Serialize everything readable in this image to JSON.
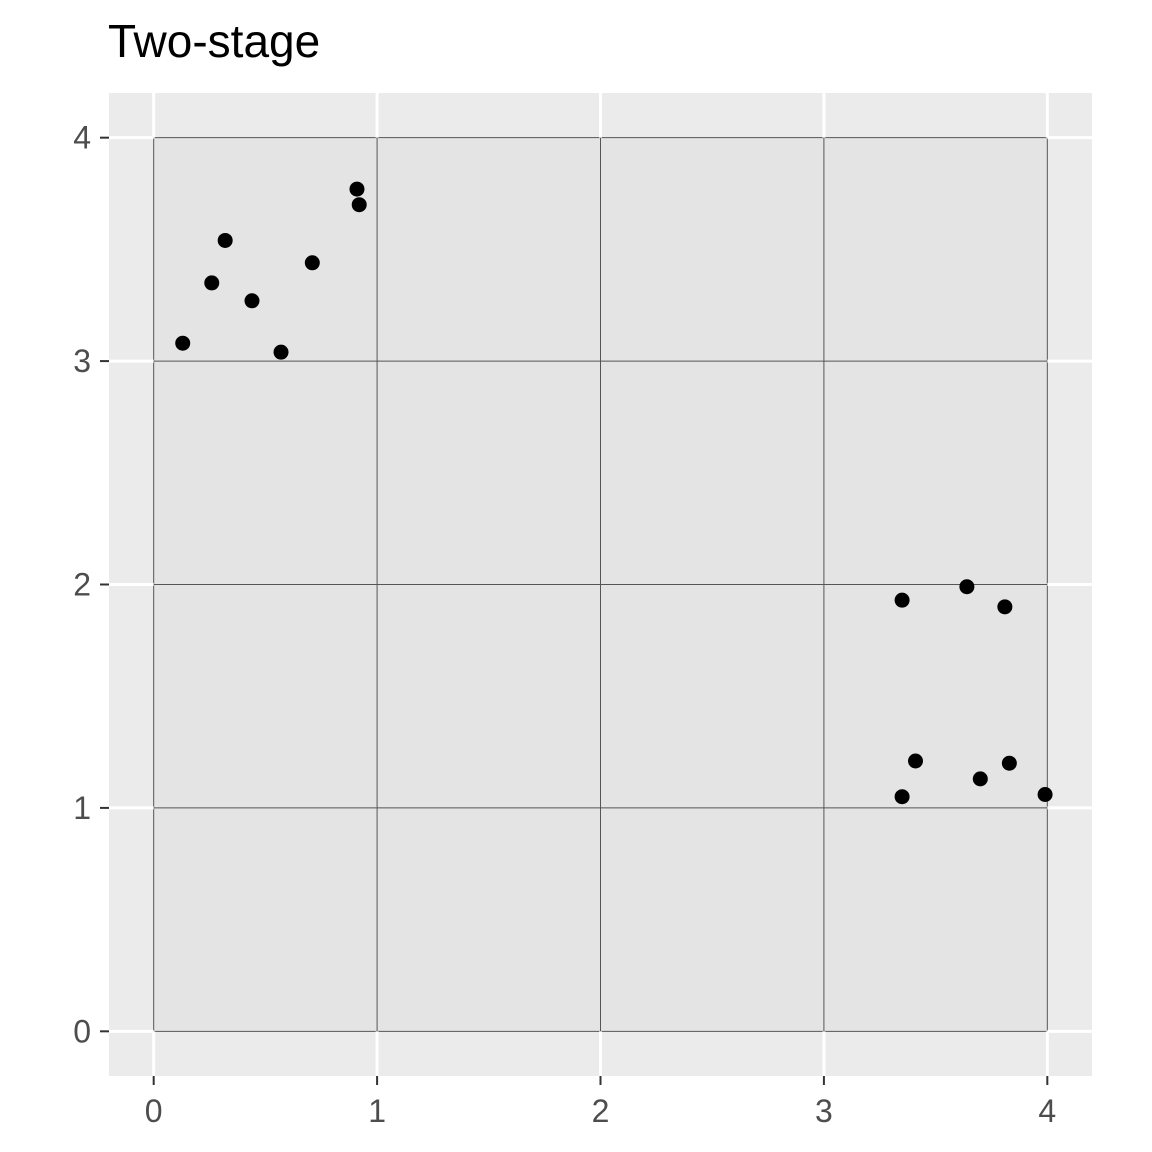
{
  "chart_data": {
    "type": "scatter",
    "title": "Two-stage",
    "xlabel": "",
    "ylabel": "",
    "xlim": [
      -0.2,
      4.2
    ],
    "ylim": [
      -0.2,
      4.2
    ],
    "x_ticks": [
      0,
      1,
      2,
      3,
      4
    ],
    "y_ticks": [
      0,
      1,
      2,
      3,
      4
    ],
    "grid": true,
    "legend": "none",
    "cell_grid": {
      "x": [
        0,
        1,
        2,
        3,
        4
      ],
      "y": [
        0,
        1,
        2,
        3,
        4
      ]
    },
    "colors": {
      "panel_background": "#ebebeb",
      "cell_fill": "#e4e4e4",
      "cell_line": "#555555",
      "gridline": "#ffffff",
      "point": "#000000",
      "tick_label": "#4d4d4d",
      "tick_mark": "#333333"
    },
    "points": [
      {
        "x": 0.13,
        "y": 3.08
      },
      {
        "x": 0.26,
        "y": 3.35
      },
      {
        "x": 0.32,
        "y": 3.54
      },
      {
        "x": 0.44,
        "y": 3.27
      },
      {
        "x": 0.57,
        "y": 3.04
      },
      {
        "x": 0.71,
        "y": 3.44
      },
      {
        "x": 0.91,
        "y": 3.77
      },
      {
        "x": 0.92,
        "y": 3.7
      },
      {
        "x": 3.35,
        "y": 1.93
      },
      {
        "x": 3.64,
        "y": 1.99
      },
      {
        "x": 3.81,
        "y": 1.9
      },
      {
        "x": 3.41,
        "y": 1.21
      },
      {
        "x": 3.83,
        "y": 1.2
      },
      {
        "x": 3.7,
        "y": 1.13
      },
      {
        "x": 3.35,
        "y": 1.05
      },
      {
        "x": 3.99,
        "y": 1.06
      }
    ]
  }
}
